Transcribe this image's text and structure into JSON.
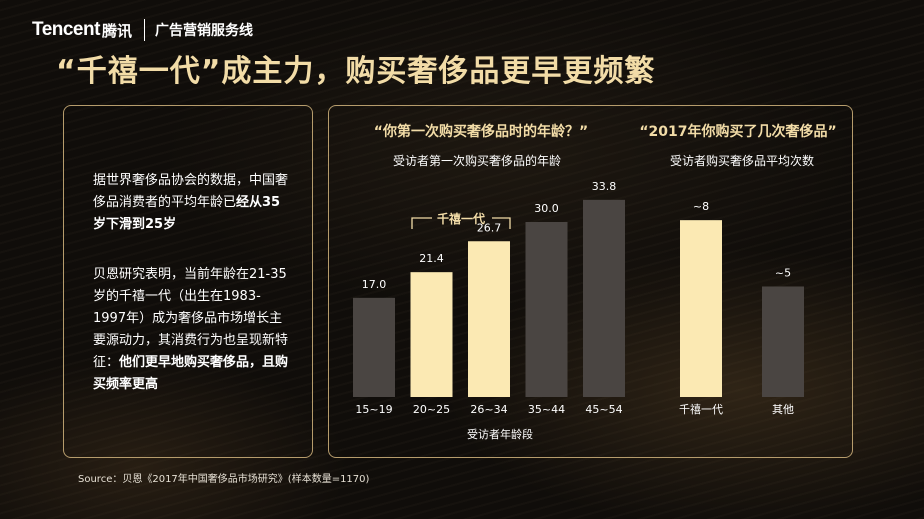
{
  "header": {
    "logo_text": "Tencent",
    "logo_cn": "腾讯",
    "department": "广告营销服务线"
  },
  "title": "“千禧一代”成主力，购买奢侈品更早更频繁",
  "left_panel": {
    "p1_normal": "据世界奢侈品协会的数据，中国奢侈品消费者的平均年龄已",
    "p1_bold": "经从35岁下滑到25岁",
    "p2_normal": "贝恩研究表明，当前年龄在21-35岁的千禧一代（出生在1983-1997年）成为奢侈品市场增长主要源动力，其消费行为也呈现新特征：",
    "p2_bold": "他们更早地购买奢侈品，且购买频率更高"
  },
  "source": "Source：贝恩《2017年中国奢侈品市场研究》(样本数量=1170)",
  "colors": {
    "accent_gold": "#f2dca7",
    "highlight_bar": "#fbe9b3",
    "muted_bar": "#4a4542",
    "panel_border": "#b69c6c"
  },
  "chart_data": [
    {
      "type": "bar",
      "title": "“你第一次购买奢侈品时的年龄？”",
      "subtitle": "受访者第一次购买奢侈品的年龄",
      "xlabel": "受访者年龄段",
      "categories": [
        "15~19",
        "20~25",
        "26~34",
        "35~44",
        "45~54"
      ],
      "values": [
        17.0,
        21.4,
        26.7,
        30.0,
        33.8
      ],
      "value_labels": [
        "17.0",
        "21.4",
        "26.7",
        "30.0",
        "33.8"
      ],
      "highlighted": [
        false,
        true,
        true,
        false,
        false
      ],
      "annotation": "千禧一代",
      "ylim": [
        0,
        36
      ]
    },
    {
      "type": "bar",
      "title": "“2017年你购买了几次奢侈品”",
      "subtitle": "受访者购买奢侈品平均次数",
      "categories": [
        "千禧一代",
        "其他"
      ],
      "values": [
        8,
        5
      ],
      "value_labels": [
        "~8",
        "~5"
      ],
      "highlighted": [
        true,
        false
      ],
      "ylim": [
        0,
        9.5
      ]
    }
  ]
}
